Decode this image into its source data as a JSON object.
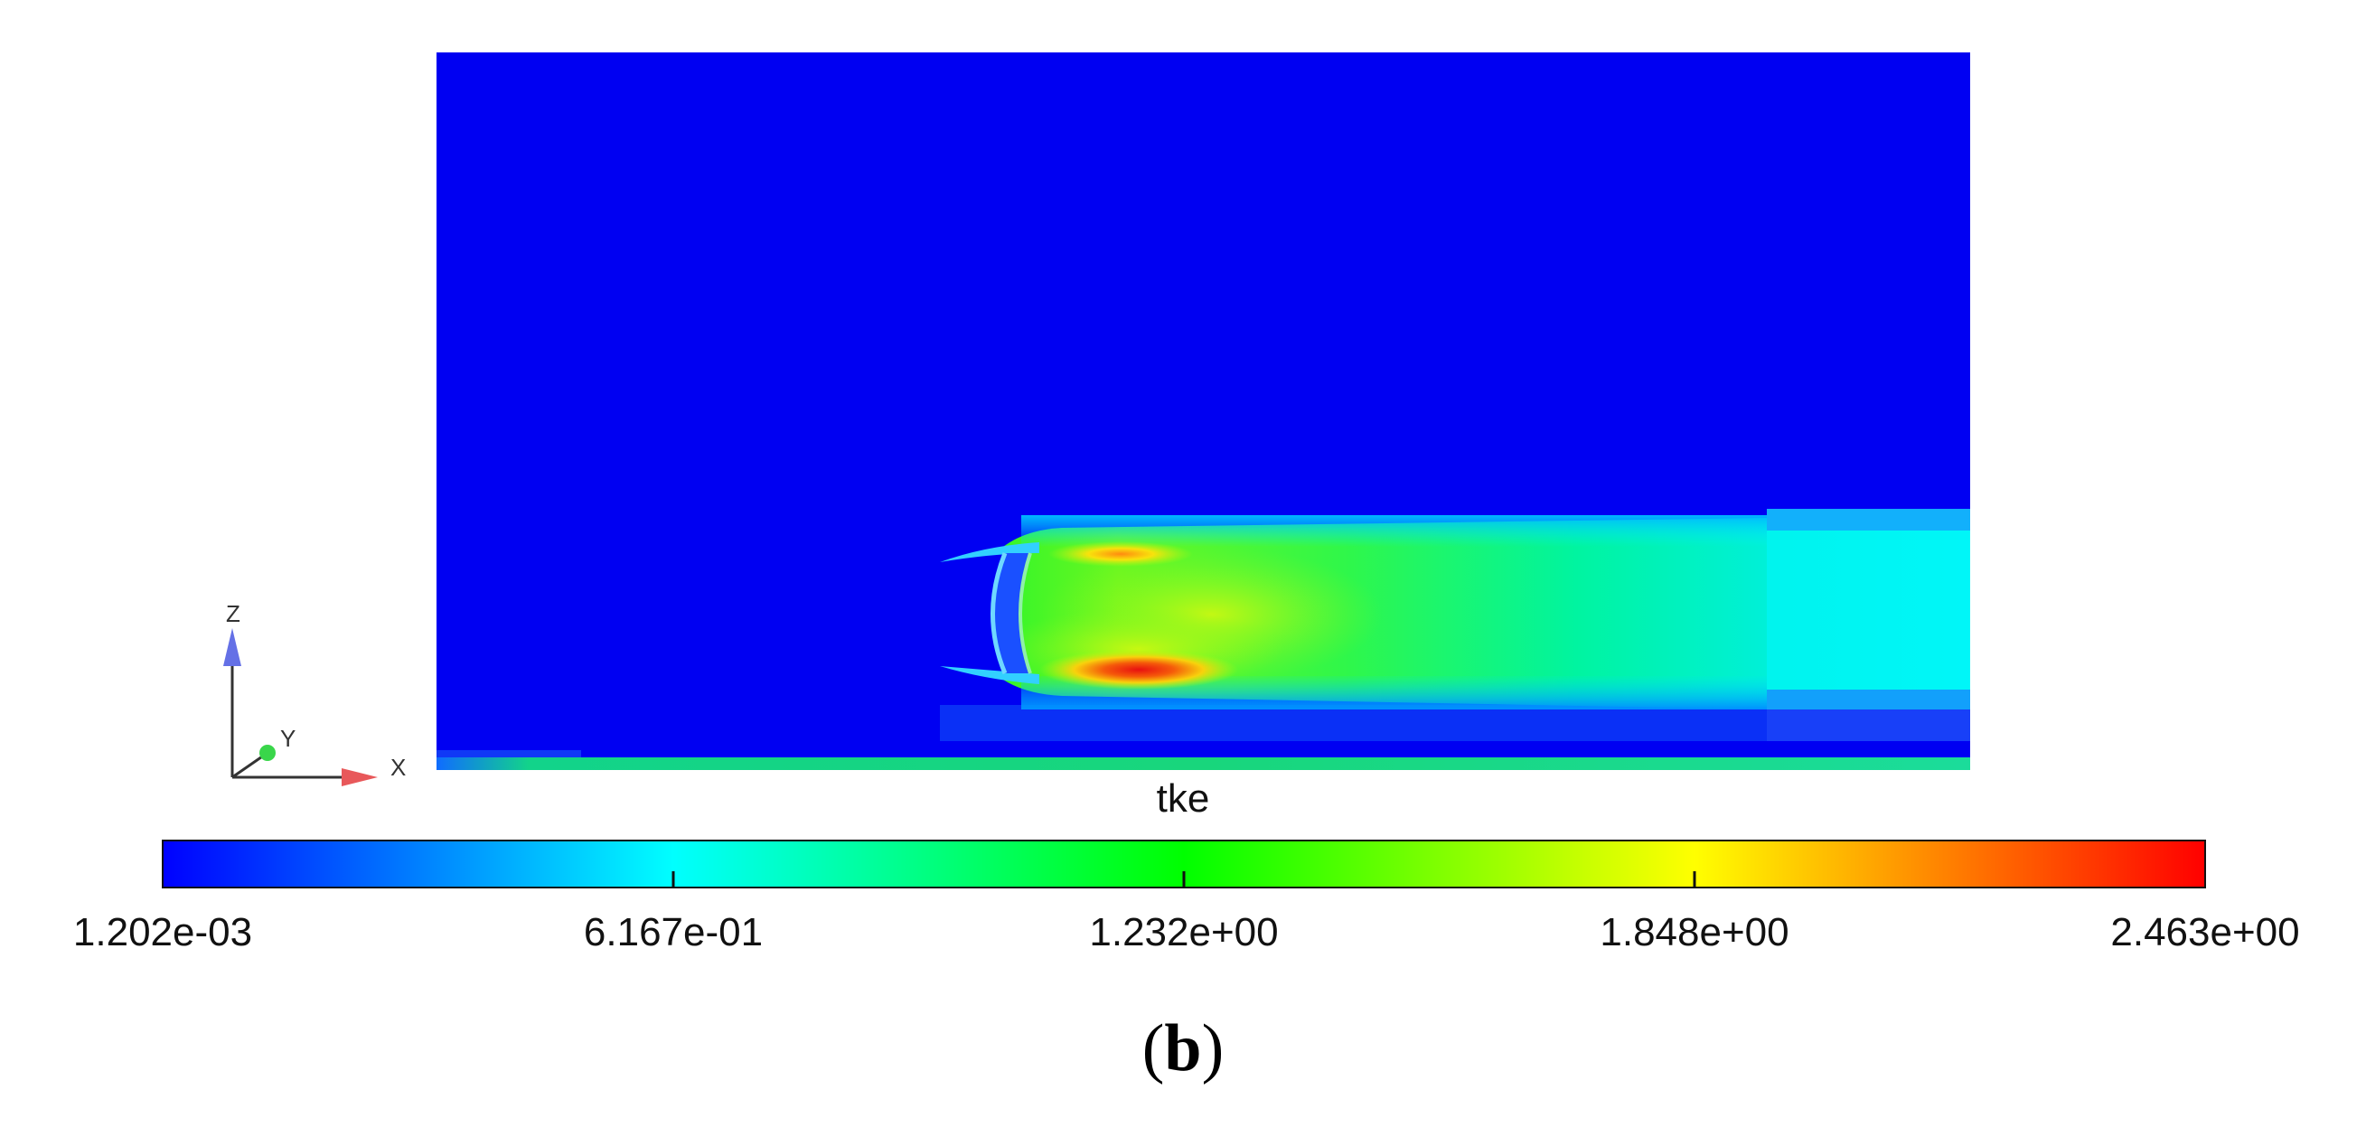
{
  "figure": {
    "variable_label": "tke",
    "panel_label": "b",
    "panel_paren_open": "(",
    "panel_paren_close": ")"
  },
  "axes_triad": {
    "z_label": "Z",
    "y_label": "Y",
    "x_label": "X"
  },
  "colorbar": {
    "min": 0.001202,
    "max": 2.463,
    "tick_labels": [
      "1.202e-03",
      "6.167e-01",
      "1.232e+00",
      "1.848e+00",
      "2.463e+00"
    ],
    "colormap": [
      "#0000ff",
      "#00ffff",
      "#00ff00",
      "#ffff00",
      "#ff0000"
    ]
  },
  "colors": {
    "background_field": "#0000f2",
    "jet_core": "#00f0a0",
    "ground_layer": "#1cd77c",
    "axis_x": "#e8585a",
    "axis_z": "#6470e6",
    "axis_y_dot": "#39d64a"
  }
}
